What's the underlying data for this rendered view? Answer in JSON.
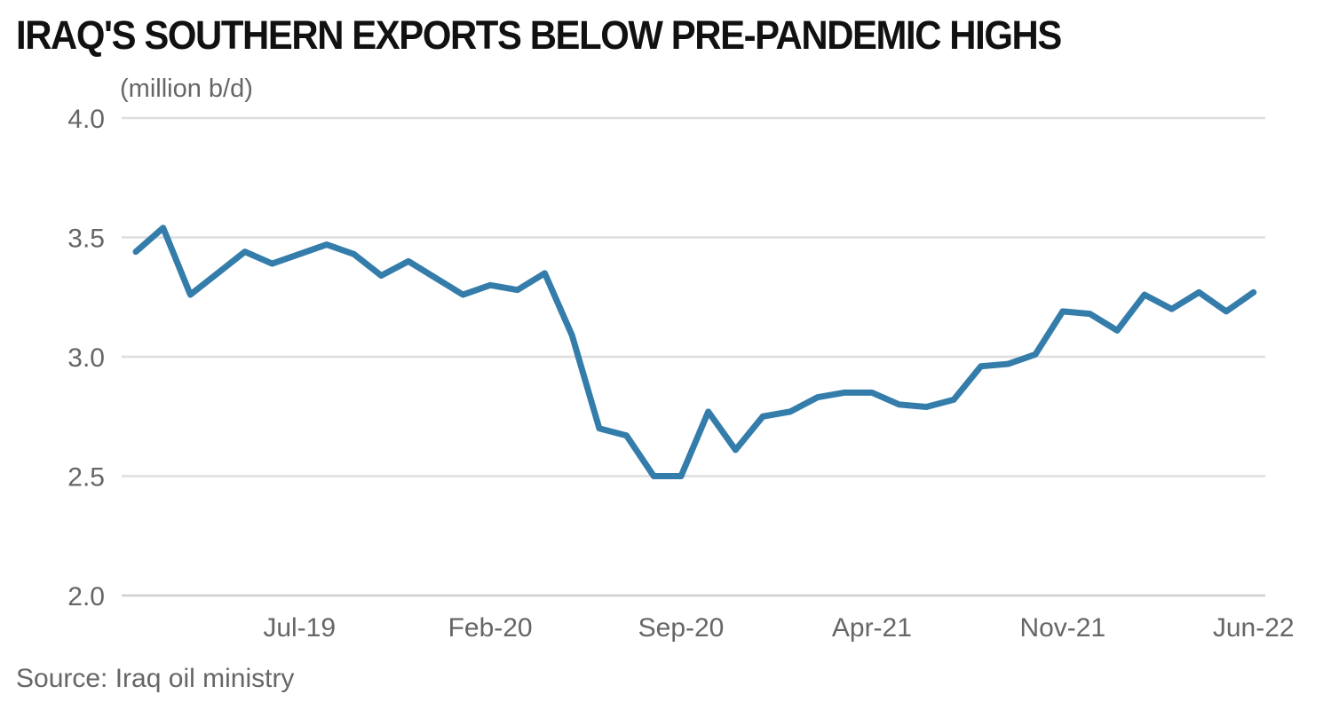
{
  "chart_data": {
    "type": "line",
    "title": "IRAQ'S SOUTHERN EXPORTS BELOW PRE-PANDEMIC HIGHS",
    "ylabel": "(million b/d)",
    "source": "Source: Iraq oil ministry",
    "ylim": [
      2.0,
      4.0
    ],
    "yticks": [
      "2.0",
      "2.5",
      "3.0",
      "3.5",
      "4.0"
    ],
    "grid": true,
    "line_color": "#347dab",
    "x": [
      "Jan-19",
      "Feb-19",
      "Mar-19",
      "Apr-19",
      "May-19",
      "Jun-19",
      "Jul-19",
      "Aug-19",
      "Sep-19",
      "Oct-19",
      "Nov-19",
      "Dec-19",
      "Jan-20",
      "Feb-20",
      "Mar-20",
      "Apr-20",
      "May-20",
      "Jun-20",
      "Jul-20",
      "Aug-20",
      "Sep-20",
      "Oct-20",
      "Nov-20",
      "Dec-20",
      "Jan-21",
      "Feb-21",
      "Mar-21",
      "Apr-21",
      "May-21",
      "Jun-21",
      "Jul-21",
      "Aug-21",
      "Sep-21",
      "Oct-21",
      "Nov-21",
      "Dec-21",
      "Jan-22",
      "Feb-22",
      "Mar-22",
      "Apr-22",
      "May-22",
      "Jun-22"
    ],
    "xticks": [
      "Jul-19",
      "Feb-20",
      "Sep-20",
      "Apr-21",
      "Nov-21",
      "Jun-22"
    ],
    "values": [
      3.44,
      3.54,
      3.26,
      3.35,
      3.44,
      3.39,
      3.43,
      3.47,
      3.43,
      3.34,
      3.4,
      3.33,
      3.26,
      3.3,
      3.28,
      3.35,
      3.09,
      2.7,
      2.67,
      2.5,
      2.5,
      2.77,
      2.61,
      2.75,
      2.77,
      2.83,
      2.85,
      2.85,
      2.8,
      2.79,
      2.82,
      2.96,
      2.97,
      3.01,
      3.19,
      3.18,
      3.11,
      3.26,
      3.2,
      3.27,
      3.19,
      3.27
    ]
  }
}
